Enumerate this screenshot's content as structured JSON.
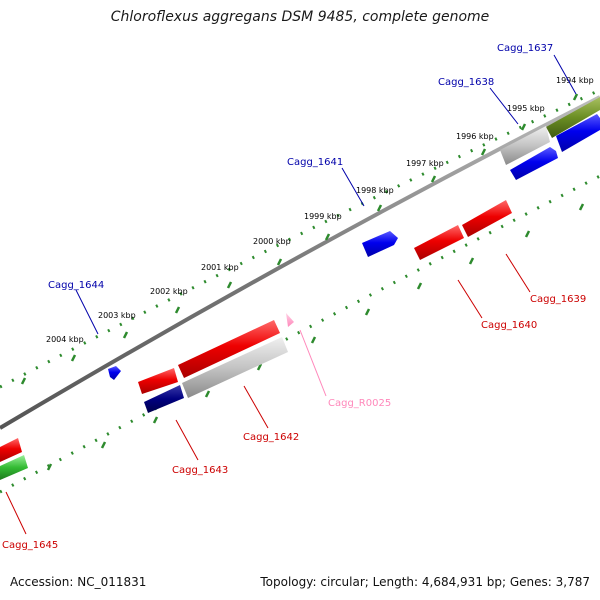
{
  "title": "Chloroflexus aggregans DSM 9485, complete genome",
  "footer": {
    "accession": "Accession: NC_011831",
    "summary": "Topology: circular; Length: 4,684,931 bp; Genes: 3,787"
  },
  "colors": {
    "backbone": "#808080",
    "ticks": "#2e8b2e",
    "cds_forward": "#0000ee",
    "cds_reverse": "#ee0000",
    "rna": "#ff99cc",
    "gene_gray": "#c0c0c0",
    "gene_green": "#44cc44",
    "gene_olive": "#6b8e23",
    "gene_navy": "#000080",
    "label_forward": "#0000aa",
    "label_reverse": "#cc0000",
    "label_rna": "#ff88bb"
  },
  "kbp_labels": [
    "1994 kbp",
    "1995 kbp",
    "1996 kbp",
    "1997 kbp",
    "1998 kbp",
    "1999 kbp",
    "2000 kbp",
    "2001 kbp",
    "2002 kbp",
    "2003 kbp",
    "2004 kbp"
  ],
  "genes": [
    {
      "name": "Cagg_1637",
      "strand": "forward"
    },
    {
      "name": "Cagg_1638",
      "strand": "forward"
    },
    {
      "name": "Cagg_1641",
      "strand": "forward"
    },
    {
      "name": "Cagg_1644",
      "strand": "forward"
    },
    {
      "name": "Cagg_1639",
      "strand": "reverse"
    },
    {
      "name": "Cagg_1640",
      "strand": "reverse"
    },
    {
      "name": "Cagg_R0025",
      "strand": "rna"
    },
    {
      "name": "Cagg_1642",
      "strand": "reverse"
    },
    {
      "name": "Cagg_1643",
      "strand": "reverse"
    },
    {
      "name": "Cagg_1645",
      "strand": "reverse"
    }
  ]
}
